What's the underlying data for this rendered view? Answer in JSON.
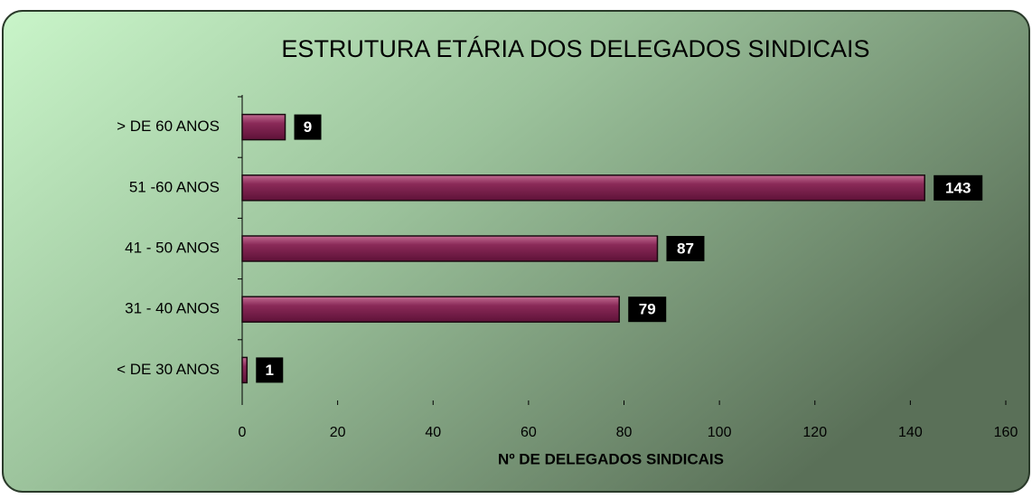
{
  "chart_data": {
    "type": "bar",
    "orientation": "horizontal",
    "title": "ESTRUTURA ETÁRIA DOS DELEGADOS SINDICAIS",
    "x_label": "Nº DE DELEGADOS SINDICAIS",
    "categories": [
      "> DE 60 ANOS",
      "51 -60 ANOS",
      "41 - 50 ANOS",
      "31 - 40 ANOS",
      "< DE 30 ANOS"
    ],
    "values": [
      9,
      143,
      87,
      79,
      1
    ],
    "color": "#8a2a58",
    "xlim": [
      0,
      160
    ],
    "xticks": [
      0,
      20,
      40,
      60,
      80,
      100,
      120,
      140,
      160
    ],
    "grid": false
  }
}
